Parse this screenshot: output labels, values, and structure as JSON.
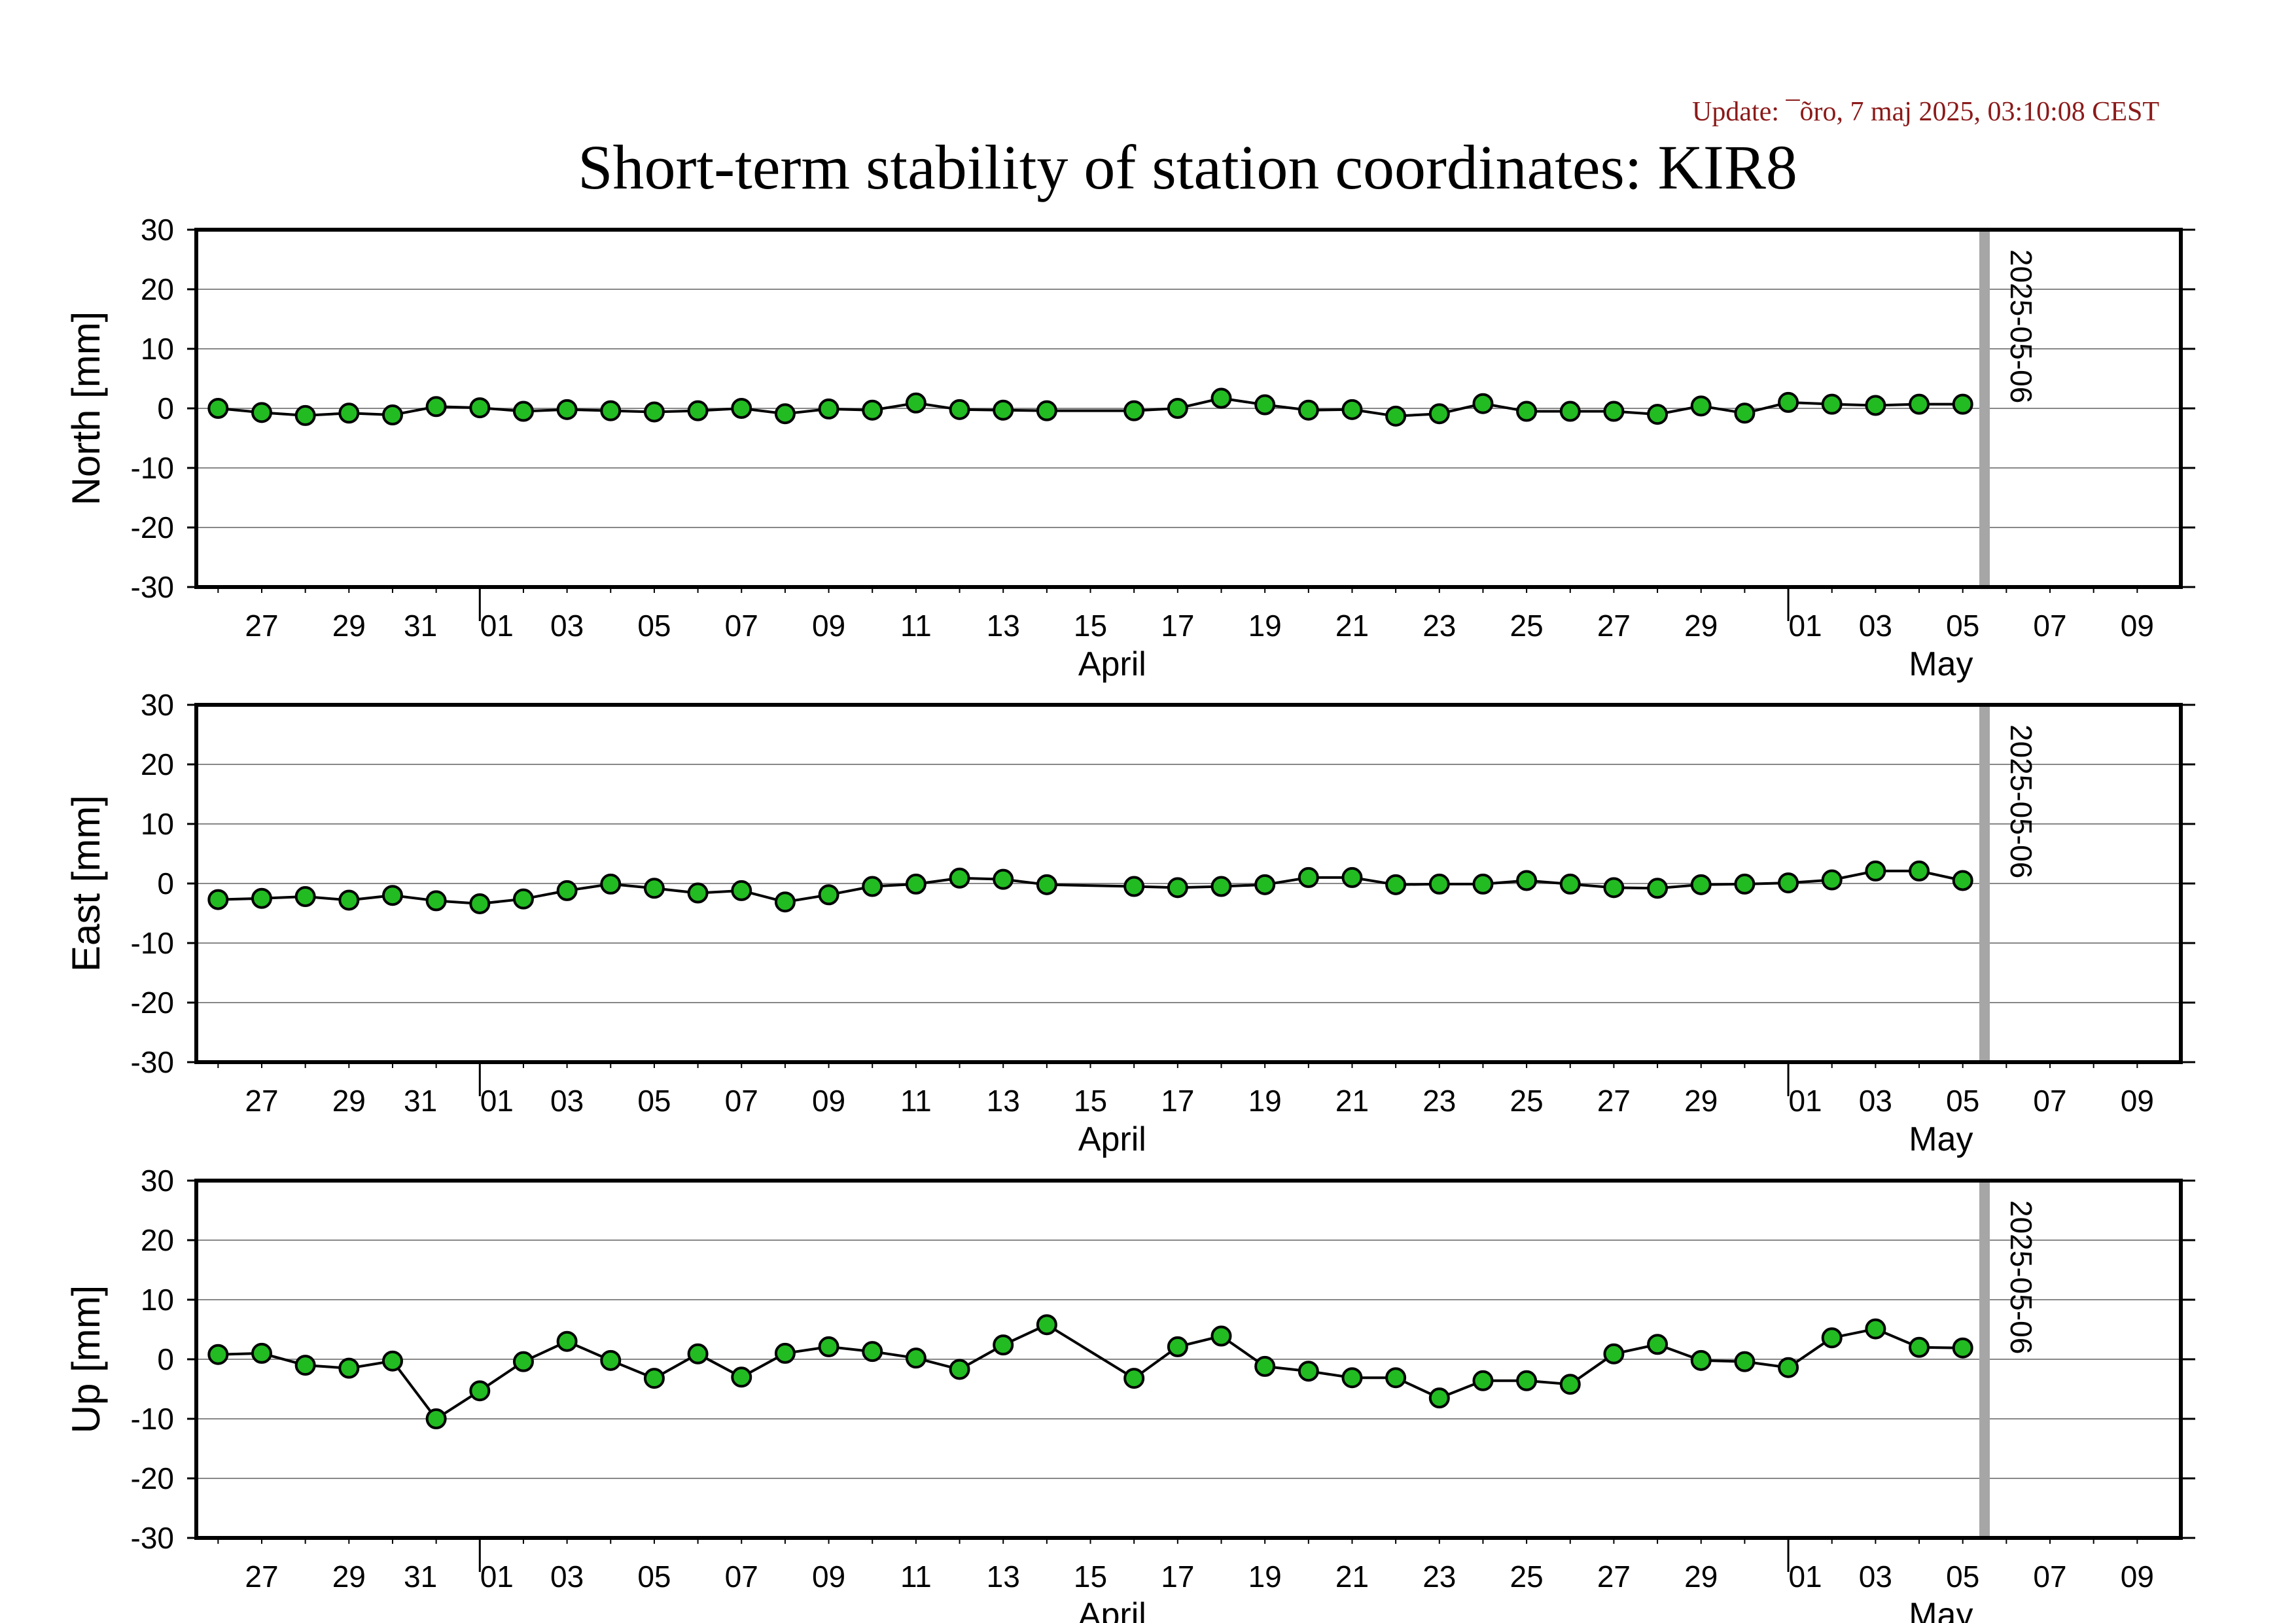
{
  "page": {
    "title": "Short-term stability of station coordinates: KIR8",
    "update": "Update: ¯õro, 7 maj 2025, 03:10:08 CEST"
  },
  "colors": {
    "marker_fill": "#22bb22",
    "marker_stroke": "#000000",
    "line": "#000000",
    "gridline": "#888888",
    "marker_bar": "#a6a6a6",
    "update_text": "#8b1a1a"
  },
  "chart_data": [
    {
      "type": "line",
      "ylabel": "North [mm]",
      "ylim": [
        -30,
        30
      ],
      "yticks": [
        "30",
        "20",
        "10",
        "0",
        "-10",
        "-20",
        "-30"
      ],
      "xlim": [
        "2025-03-25T12:00",
        "2025-05-10T00:00"
      ],
      "xticks": [
        "27",
        "29",
        "31",
        "01",
        "03",
        "05",
        "07",
        "09",
        "11",
        "13",
        "15",
        "17",
        "19",
        "21",
        "23",
        "25",
        "27",
        "29",
        "01",
        "03",
        "05",
        "07",
        "09"
      ],
      "month_labels": [
        "April",
        "May"
      ],
      "grid": true,
      "marker_line_label": "2025-05-06",
      "x": [
        "2025-03-26",
        "2025-03-27",
        "2025-03-28",
        "2025-03-29",
        "2025-03-30",
        "2025-03-31",
        "2025-04-01",
        "2025-04-02",
        "2025-04-03",
        "2025-04-04",
        "2025-04-05",
        "2025-04-06",
        "2025-04-07",
        "2025-04-08",
        "2025-04-09",
        "2025-04-10",
        "2025-04-11",
        "2025-04-12",
        "2025-04-13",
        "2025-04-14",
        "2025-04-16",
        "2025-04-17",
        "2025-04-18",
        "2025-04-19",
        "2025-04-20",
        "2025-04-21",
        "2025-04-22",
        "2025-04-23",
        "2025-04-24",
        "2025-04-25",
        "2025-04-26",
        "2025-04-27",
        "2025-04-28",
        "2025-04-29",
        "2025-04-30",
        "2025-05-01",
        "2025-05-02",
        "2025-05-03",
        "2025-05-04",
        "2025-05-05"
      ],
      "values": [
        0.0,
        -0.7,
        -1.2,
        -0.8,
        -1.1,
        0.3,
        0.1,
        -0.5,
        -0.2,
        -0.4,
        -0.6,
        -0.4,
        0.0,
        -0.9,
        -0.1,
        -0.3,
        0.9,
        -0.2,
        -0.3,
        -0.4,
        -0.4,
        0.0,
        1.7,
        0.6,
        -0.3,
        -0.2,
        -1.3,
        -0.9,
        0.8,
        -0.5,
        -0.5,
        -0.5,
        -1.0,
        0.4,
        -0.8,
        1.0,
        0.7,
        0.5,
        0.7,
        0.7
      ]
    },
    {
      "type": "line",
      "ylabel": "East [mm]",
      "ylim": [
        -30,
        30
      ],
      "yticks": [
        "30",
        "20",
        "10",
        "0",
        "-10",
        "-20",
        "-30"
      ],
      "xlim": [
        "2025-03-25T12:00",
        "2025-05-10T00:00"
      ],
      "xticks": [
        "27",
        "29",
        "31",
        "01",
        "03",
        "05",
        "07",
        "09",
        "11",
        "13",
        "15",
        "17",
        "19",
        "21",
        "23",
        "25",
        "27",
        "29",
        "01",
        "03",
        "05",
        "07",
        "09"
      ],
      "month_labels": [
        "April",
        "May"
      ],
      "grid": true,
      "marker_line_label": "2025-05-06",
      "x": [
        "2025-03-26",
        "2025-03-27",
        "2025-03-28",
        "2025-03-29",
        "2025-03-30",
        "2025-03-31",
        "2025-04-01",
        "2025-04-02",
        "2025-04-03",
        "2025-04-04",
        "2025-04-05",
        "2025-04-06",
        "2025-04-07",
        "2025-04-08",
        "2025-04-09",
        "2025-04-10",
        "2025-04-11",
        "2025-04-12",
        "2025-04-13",
        "2025-04-14",
        "2025-04-16",
        "2025-04-17",
        "2025-04-18",
        "2025-04-19",
        "2025-04-20",
        "2025-04-21",
        "2025-04-22",
        "2025-04-23",
        "2025-04-24",
        "2025-04-25",
        "2025-04-26",
        "2025-04-27",
        "2025-04-28",
        "2025-04-29",
        "2025-04-30",
        "2025-05-01",
        "2025-05-02",
        "2025-05-03",
        "2025-05-04",
        "2025-05-05"
      ],
      "values": [
        -2.7,
        -2.5,
        -2.2,
        -2.8,
        -2.0,
        -2.9,
        -3.4,
        -2.6,
        -1.2,
        -0.1,
        -0.8,
        -1.6,
        -1.2,
        -3.1,
        -1.9,
        -0.5,
        -0.1,
        0.9,
        0.7,
        -0.2,
        -0.5,
        -0.7,
        -0.5,
        -0.2,
        1.0,
        1.0,
        -0.2,
        -0.1,
        -0.1,
        0.5,
        -0.1,
        -0.7,
        -0.8,
        -0.2,
        -0.1,
        0.1,
        0.6,
        2.1,
        2.1,
        0.5
      ]
    },
    {
      "type": "line",
      "ylabel": "Up [mm]",
      "ylim": [
        -30,
        30
      ],
      "yticks": [
        "30",
        "20",
        "10",
        "0",
        "-10",
        "-20",
        "-30"
      ],
      "xlim": [
        "2025-03-25T12:00",
        "2025-05-10T00:00"
      ],
      "xticks": [
        "27",
        "29",
        "31",
        "01",
        "03",
        "05",
        "07",
        "09",
        "11",
        "13",
        "15",
        "17",
        "19",
        "21",
        "23",
        "25",
        "27",
        "29",
        "01",
        "03",
        "05",
        "07",
        "09"
      ],
      "month_labels": [
        "April",
        "May"
      ],
      "grid": true,
      "marker_line_label": "2025-05-06",
      "x": [
        "2025-03-26",
        "2025-03-27",
        "2025-03-28",
        "2025-03-29",
        "2025-03-30",
        "2025-03-31",
        "2025-04-01",
        "2025-04-02",
        "2025-04-03",
        "2025-04-04",
        "2025-04-05",
        "2025-04-06",
        "2025-04-07",
        "2025-04-08",
        "2025-04-09",
        "2025-04-10",
        "2025-04-11",
        "2025-04-12",
        "2025-04-13",
        "2025-04-14",
        "2025-04-16",
        "2025-04-17",
        "2025-04-18",
        "2025-04-19",
        "2025-04-20",
        "2025-04-21",
        "2025-04-22",
        "2025-04-23",
        "2025-04-24",
        "2025-04-25",
        "2025-04-26",
        "2025-04-27",
        "2025-04-28",
        "2025-04-29",
        "2025-04-30",
        "2025-05-01",
        "2025-05-02",
        "2025-05-03",
        "2025-05-04",
        "2025-05-05"
      ],
      "values": [
        0.8,
        1.0,
        -1.0,
        -1.5,
        -0.3,
        -10.0,
        -5.3,
        -0.4,
        3.0,
        -0.2,
        -3.2,
        0.9,
        -3.0,
        1.0,
        2.1,
        1.3,
        0.2,
        -1.7,
        2.4,
        5.8,
        -3.2,
        2.1,
        3.9,
        -1.2,
        -2.0,
        -3.1,
        -3.1,
        -6.5,
        -3.6,
        -3.6,
        -4.2,
        0.9,
        2.5,
        -0.2,
        -0.4,
        -1.4,
        3.6,
        5.1,
        2.0,
        1.9
      ]
    }
  ]
}
